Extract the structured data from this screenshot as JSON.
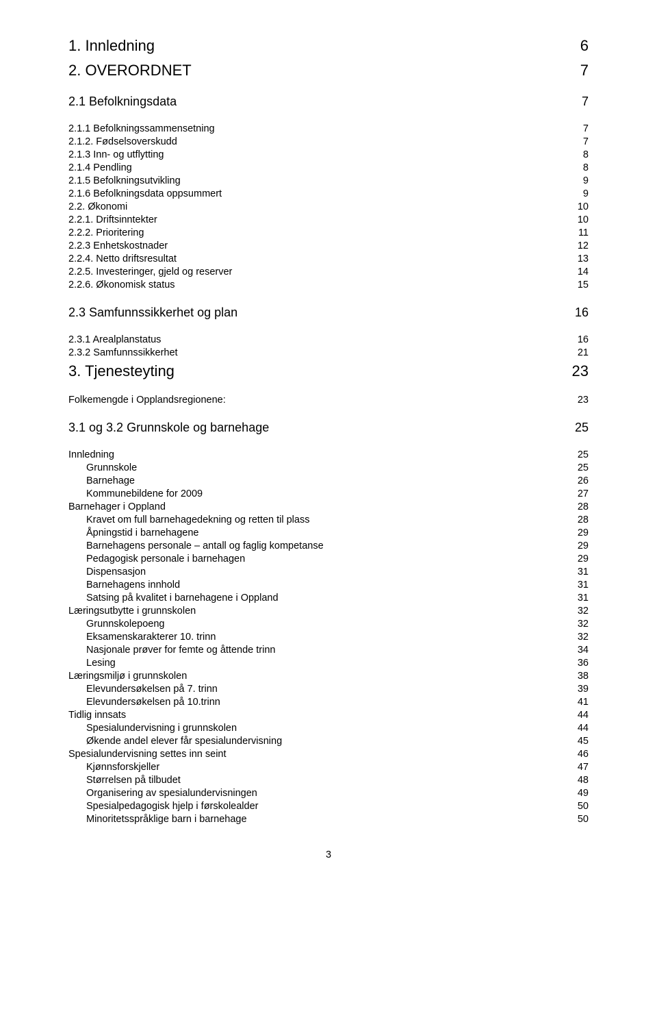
{
  "pageNumber": "3",
  "entries": [
    {
      "level": "h1",
      "label": "1. Innledning",
      "page": "6"
    },
    {
      "level": "h1",
      "label": "2. OVERORDNET",
      "page": "7"
    },
    {
      "level": "h2",
      "label": "2.1 Befolkningsdata",
      "page": "7"
    },
    {
      "level": "h3",
      "label": "2.1.1 Befolkningssammensetning",
      "page": "7"
    },
    {
      "level": "h3",
      "label": "2.1.2. Fødselsoverskudd",
      "page": "7"
    },
    {
      "level": "h3",
      "label": "2.1.3 Inn- og utflytting",
      "page": "8"
    },
    {
      "level": "h3",
      "label": "2.1.4 Pendling",
      "page": "8"
    },
    {
      "level": "h3",
      "label": "2.1.5 Befolkningsutvikling",
      "page": "9"
    },
    {
      "level": "h3",
      "label": "2.1.6 Befolkningsdata oppsummert",
      "page": "9"
    },
    {
      "level": "h3",
      "label": "2.2. Økonomi",
      "page": "10"
    },
    {
      "level": "h3",
      "label": "2.2.1. Driftsinntekter",
      "page": "10"
    },
    {
      "level": "h3",
      "label": "2.2.2. Prioritering",
      "page": "11"
    },
    {
      "level": "h3",
      "label": "2.2.3 Enhetskostnader",
      "page": "12"
    },
    {
      "level": "h3",
      "label": "2.2.4. Netto driftsresultat",
      "page": "13"
    },
    {
      "level": "h3",
      "label": "2.2.5. Investeringer, gjeld og reserver",
      "page": "14"
    },
    {
      "level": "h3",
      "label": "2.2.6. Økonomisk status",
      "page": "15"
    },
    {
      "level": "h2",
      "label": "2.3 Samfunnssikkerhet og plan",
      "page": "16"
    },
    {
      "level": "h3",
      "label": "2.3.1 Arealplanstatus",
      "page": "16"
    },
    {
      "level": "h3",
      "label": "2.3.2 Samfunnssikkerhet",
      "page": "21"
    },
    {
      "level": "h1",
      "label": "3. Tjenesteyting",
      "page": "23"
    },
    {
      "level": "h3",
      "label": "Folkemengde i Opplandsregionene:",
      "page": "23"
    },
    {
      "level": "h2",
      "label": "3.1 og 3.2 Grunnskole og barnehage",
      "page": "25"
    },
    {
      "level": "h3",
      "label": "Innledning",
      "page": "25"
    },
    {
      "level": "h4",
      "label": "Grunnskole",
      "page": "25"
    },
    {
      "level": "h4",
      "label": "Barnehage",
      "page": "26"
    },
    {
      "level": "h4",
      "label": "Kommunebildene for 2009",
      "page": "27"
    },
    {
      "level": "h3",
      "label": "Barnehager i Oppland",
      "page": "28"
    },
    {
      "level": "h4",
      "label": "Kravet om full barnehagedekning og retten til plass",
      "page": "28"
    },
    {
      "level": "h4",
      "label": "Åpningstid i barnehagene",
      "page": "29"
    },
    {
      "level": "h4",
      "label": "Barnehagens personale – antall og faglig kompetanse",
      "page": "29"
    },
    {
      "level": "h4",
      "label": "Pedagogisk personale i barnehagen",
      "page": "29"
    },
    {
      "level": "h4",
      "label": "Dispensasjon",
      "page": "31"
    },
    {
      "level": "h4",
      "label": "Barnehagens innhold",
      "page": "31"
    },
    {
      "level": "h4",
      "label": "Satsing på kvalitet i barnehagene i Oppland",
      "page": "31"
    },
    {
      "level": "h3",
      "label": "Læringsutbytte i grunnskolen",
      "page": "32"
    },
    {
      "level": "h4",
      "label": "Grunnskolepoeng",
      "page": "32"
    },
    {
      "level": "h4",
      "label": "Eksamenskarakterer 10. trinn",
      "page": "32"
    },
    {
      "level": "h4",
      "label": "Nasjonale prøver for femte og åttende trinn",
      "page": "34"
    },
    {
      "level": "h4",
      "label": "Lesing",
      "page": "36"
    },
    {
      "level": "h3",
      "label": "Læringsmiljø i grunnskolen",
      "page": "38"
    },
    {
      "level": "h4",
      "label": "Elevundersøkelsen på 7. trinn",
      "page": "39"
    },
    {
      "level": "h4",
      "label": "Elevundersøkelsen på 10.trinn",
      "page": "41"
    },
    {
      "level": "h3",
      "label": "Tidlig innsats",
      "page": "44"
    },
    {
      "level": "h4",
      "label": "Spesialundervisning i grunnskolen",
      "page": "44"
    },
    {
      "level": "h4",
      "label": "Økende andel elever får spesialundervisning",
      "page": "45"
    },
    {
      "level": "h3",
      "label": "Spesialundervisning settes inn seint",
      "page": "46"
    },
    {
      "level": "h4",
      "label": "Kjønnsforskjeller",
      "page": "47"
    },
    {
      "level": "h4",
      "label": "Størrelsen på tilbudet",
      "page": "48"
    },
    {
      "level": "h4",
      "label": "Organisering av spesialundervisningen",
      "page": "49"
    },
    {
      "level": "h4",
      "label": "Spesialpedagogisk hjelp i førskolealder",
      "page": "50"
    },
    {
      "level": "h4",
      "label": "Minoritetsspråklige barn i barnehage",
      "page": "50"
    }
  ]
}
